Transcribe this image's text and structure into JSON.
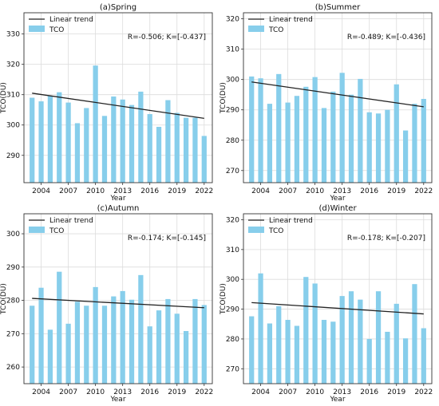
{
  "chart_data": [
    {
      "type": "bar",
      "title": "(a)Spring",
      "xlabel": "Year",
      "ylabel": "TCO(DU)",
      "xticks": [
        2004,
        2007,
        2010,
        2013,
        2016,
        2019,
        2022
      ],
      "yticks": [
        290,
        300,
        310,
        320,
        330
      ],
      "ylim": [
        281,
        337
      ],
      "grid": true,
      "legend": {
        "position": "top-left",
        "entries": [
          "Linear trend",
          "TCO"
        ]
      },
      "annotation": "R=-0.506;  K=[-0.437]",
      "x": [
        2003,
        2004,
        2005,
        2006,
        2007,
        2008,
        2009,
        2010,
        2011,
        2012,
        2013,
        2014,
        2015,
        2016,
        2017,
        2018,
        2019,
        2020,
        2021,
        2022
      ],
      "values": [
        309,
        307.8,
        309.6,
        310.8,
        307.4,
        300.6,
        305.6,
        319.6,
        303,
        309.4,
        308.4,
        306.6,
        311,
        303.6,
        299.4,
        308.2,
        304,
        302.4,
        302.4,
        296.4
      ],
      "trend": [
        310.5,
        302.2
      ],
      "bar_color": "#87ceeb",
      "trend_color": "#222222"
    },
    {
      "type": "bar",
      "title": "(b)Summer",
      "xlabel": "Year",
      "ylabel": "TCO(DU)",
      "xticks": [
        2004,
        2007,
        2010,
        2013,
        2016,
        2019,
        2022
      ],
      "yticks": [
        270,
        280,
        290,
        300,
        310,
        320
      ],
      "ylim": [
        266,
        322
      ],
      "grid": true,
      "legend": {
        "position": "top-left",
        "entries": [
          "Linear trend",
          "TCO"
        ]
      },
      "annotation": "R=-0.489;  K=[-0.436]",
      "x": [
        2003,
        2004,
        2005,
        2006,
        2007,
        2008,
        2009,
        2010,
        2011,
        2012,
        2013,
        2014,
        2015,
        2016,
        2017,
        2018,
        2019,
        2020,
        2021,
        2022
      ],
      "values": [
        301,
        300.4,
        292,
        301.8,
        292.4,
        294.6,
        297.6,
        300.8,
        290.6,
        296,
        302.2,
        295,
        300.2,
        289.2,
        288.8,
        290,
        298.4,
        283.2,
        292,
        293.6
      ],
      "trend": [
        299.2,
        291.0
      ],
      "bar_color": "#87ceeb",
      "trend_color": "#222222"
    },
    {
      "type": "bar",
      "title": "(c)Autumn",
      "xlabel": "Year",
      "ylabel": "TCO(DU)",
      "xticks": [
        2004,
        2007,
        2010,
        2013,
        2016,
        2019,
        2022
      ],
      "yticks": [
        260,
        270,
        280,
        290,
        300
      ],
      "ylim": [
        255,
        306
      ],
      "grid": true,
      "legend": {
        "position": "top-left",
        "entries": [
          "Linear trend",
          "TCO"
        ]
      },
      "annotation": "R=-0.174;  K=[-0.145]",
      "x": [
        2003,
        2004,
        2005,
        2006,
        2007,
        2008,
        2009,
        2010,
        2011,
        2012,
        2013,
        2014,
        2015,
        2016,
        2017,
        2018,
        2019,
        2020,
        2021,
        2022
      ],
      "values": [
        278.4,
        283.8,
        271.2,
        288.6,
        273,
        279.6,
        278.4,
        284,
        278.4,
        281.2,
        282.8,
        280.2,
        287.6,
        272.2,
        277,
        280.4,
        276,
        270.8,
        280.4,
        278.6
      ],
      "trend": [
        280.6,
        277.8
      ],
      "bar_color": "#87ceeb",
      "trend_color": "#222222"
    },
    {
      "type": "bar",
      "title": "(d)Winter",
      "xlabel": "Year",
      "ylabel": "TCO(DU)",
      "xticks": [
        2004,
        2007,
        2010,
        2013,
        2016,
        2019,
        2022
      ],
      "yticks": [
        270,
        280,
        290,
        300,
        310,
        320
      ],
      "ylim": [
        265,
        322
      ],
      "grid": true,
      "legend": {
        "position": "top-left",
        "entries": [
          "Linear trend",
          "TCO"
        ]
      },
      "annotation": "R=-0.178;  K=[-0.207]",
      "x": [
        2003,
        2004,
        2005,
        2006,
        2007,
        2008,
        2009,
        2010,
        2011,
        2012,
        2013,
        2014,
        2015,
        2016,
        2017,
        2018,
        2019,
        2020,
        2021,
        2022
      ],
      "values": [
        287.6,
        302,
        285.2,
        291,
        286.4,
        284.4,
        300.8,
        298.6,
        286.4,
        285.8,
        294.4,
        296,
        293.2,
        280,
        296,
        282.4,
        291.8,
        280.2,
        298.4,
        283.6
      ],
      "trend": [
        292.2,
        288.4
      ],
      "bar_color": "#87ceeb",
      "trend_color": "#222222"
    }
  ]
}
